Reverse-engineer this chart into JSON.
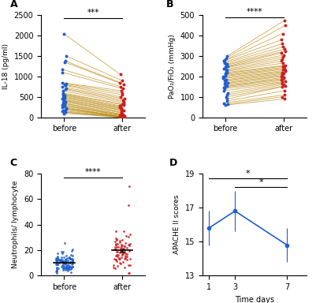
{
  "panel_A": {
    "label": "A",
    "ylabel": "IL-18 (pg/ml)",
    "xlabel_before": "before",
    "xlabel_after": "after",
    "ylim": [
      0,
      2500
    ],
    "yticks": [
      0,
      500,
      1000,
      1500,
      2000,
      2500
    ],
    "significance": "***",
    "before": [
      2050,
      1500,
      1380,
      1350,
      1170,
      1100,
      850,
      820,
      800,
      780,
      750,
      700,
      680,
      650,
      600,
      580,
      560,
      540,
      520,
      500,
      480,
      460,
      440,
      420,
      400,
      380,
      360,
      340,
      320,
      300,
      280,
      260,
      240,
      220,
      200,
      180,
      160,
      140,
      120,
      100
    ],
    "after": [
      1050,
      900,
      850,
      800,
      750,
      700,
      650,
      600,
      550,
      500,
      450,
      420,
      380,
      350,
      320,
      300,
      280,
      260,
      240,
      220,
      200,
      180,
      160,
      140,
      120,
      100,
      80,
      60,
      50,
      40,
      30,
      20,
      15,
      10,
      8,
      5,
      3,
      2,
      1,
      0
    ],
    "dot_color_before": "#1f5fcc",
    "dot_color_after": "#cc1f1f",
    "line_color": "#b8860b"
  },
  "panel_B": {
    "label": "B",
    "ylabel": "PaO₂/FiO₂ (mmHg)",
    "xlabel_before": "before",
    "xlabel_after": "after",
    "ylim": [
      0,
      500
    ],
    "yticks": [
      0,
      100,
      200,
      300,
      400,
      500
    ],
    "significance": "****",
    "before": [
      300,
      290,
      280,
      275,
      270,
      265,
      260,
      255,
      250,
      245,
      240,
      235,
      230,
      225,
      220,
      215,
      210,
      205,
      200,
      195,
      190,
      185,
      180,
      175,
      170,
      165,
      160,
      155,
      150,
      145,
      140,
      130,
      120,
      110,
      100,
      90,
      80,
      70,
      65,
      60
    ],
    "after": [
      475,
      450,
      410,
      380,
      360,
      345,
      335,
      325,
      315,
      305,
      295,
      285,
      275,
      265,
      255,
      250,
      245,
      240,
      235,
      230,
      225,
      220,
      215,
      210,
      205,
      200,
      195,
      190,
      185,
      180,
      175,
      170,
      165,
      160,
      155,
      150,
      130,
      110,
      100,
      90
    ],
    "dot_color_before": "#1f5fcc",
    "dot_color_after": "#cc1f1f",
    "line_color": "#b8860b"
  },
  "panel_C": {
    "label": "C",
    "ylabel": "Neutrophils/ lymphocyte",
    "xlabel_before": "before",
    "xlabel_after": "after",
    "ylim": [
      0,
      80
    ],
    "yticks": [
      0,
      20,
      40,
      60,
      80
    ],
    "significance": "****",
    "before_mean": 10,
    "before_std": 4,
    "before_n": 120,
    "after_mean": 18,
    "after_std": 8,
    "after_n": 80,
    "after_outliers": [
      55,
      70
    ],
    "dot_color_before": "#1f5fcc",
    "dot_color_after": "#cc1f1f",
    "mean_line_color": "#333333"
  },
  "panel_D": {
    "label": "D",
    "ylabel": "APACHE II scores",
    "xlabel": "Time days",
    "ylim": [
      13,
      19
    ],
    "yticks": [
      13,
      15,
      17,
      19
    ],
    "time_points": [
      1,
      3,
      7
    ],
    "means": [
      15.8,
      16.8,
      14.8
    ],
    "errors": [
      1.0,
      1.2,
      1.0
    ],
    "line_color": "#1f5fcc",
    "dot_color": "#1f5fcc"
  },
  "background_color": "#ffffff",
  "font_size": 7,
  "label_fontsize": 9
}
